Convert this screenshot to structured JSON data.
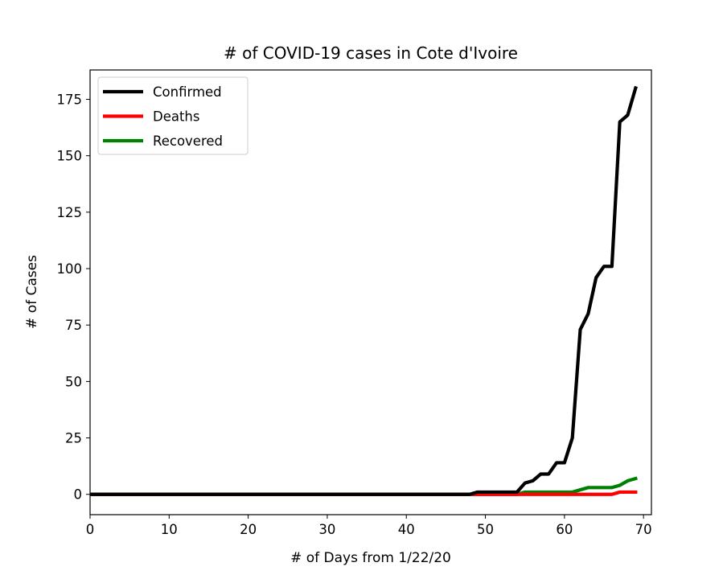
{
  "chart_data": {
    "type": "line",
    "title": "# of COVID-19 cases in Cote d'Ivoire",
    "xlabel": "# of Days from 1/22/20",
    "ylabel": "# of Cases",
    "xlim": [
      0,
      71
    ],
    "ylim": [
      -9,
      188
    ],
    "xticks": [
      0,
      10,
      20,
      30,
      40,
      50,
      60,
      70
    ],
    "yticks": [
      0,
      25,
      50,
      75,
      100,
      125,
      150,
      175
    ],
    "grid": false,
    "legend_position": "top-left",
    "series": [
      {
        "name": "Confirmed",
        "color": "#000000",
        "points": [
          [
            0,
            0
          ],
          [
            48,
            0
          ],
          [
            49,
            1
          ],
          [
            54,
            1
          ],
          [
            55,
            5
          ],
          [
            56,
            6
          ],
          [
            57,
            9
          ],
          [
            58,
            9
          ],
          [
            59,
            14
          ],
          [
            60,
            14
          ],
          [
            61,
            25
          ],
          [
            62,
            73
          ],
          [
            63,
            80
          ],
          [
            64,
            96
          ],
          [
            65,
            101
          ],
          [
            66,
            101
          ],
          [
            67,
            165
          ],
          [
            68,
            168
          ],
          [
            69,
            180
          ]
        ]
      },
      {
        "name": "Deaths",
        "color": "#ff0000",
        "points": [
          [
            0,
            0
          ],
          [
            66,
            0
          ],
          [
            67,
            1
          ],
          [
            69,
            1
          ]
        ]
      },
      {
        "name": "Recovered",
        "color": "#008000",
        "points": [
          [
            0,
            0
          ],
          [
            54,
            0
          ],
          [
            55,
            1
          ],
          [
            61,
            1
          ],
          [
            63,
            3
          ],
          [
            66,
            3
          ],
          [
            67,
            4
          ],
          [
            68,
            6
          ],
          [
            69,
            7
          ]
        ]
      }
    ]
  }
}
